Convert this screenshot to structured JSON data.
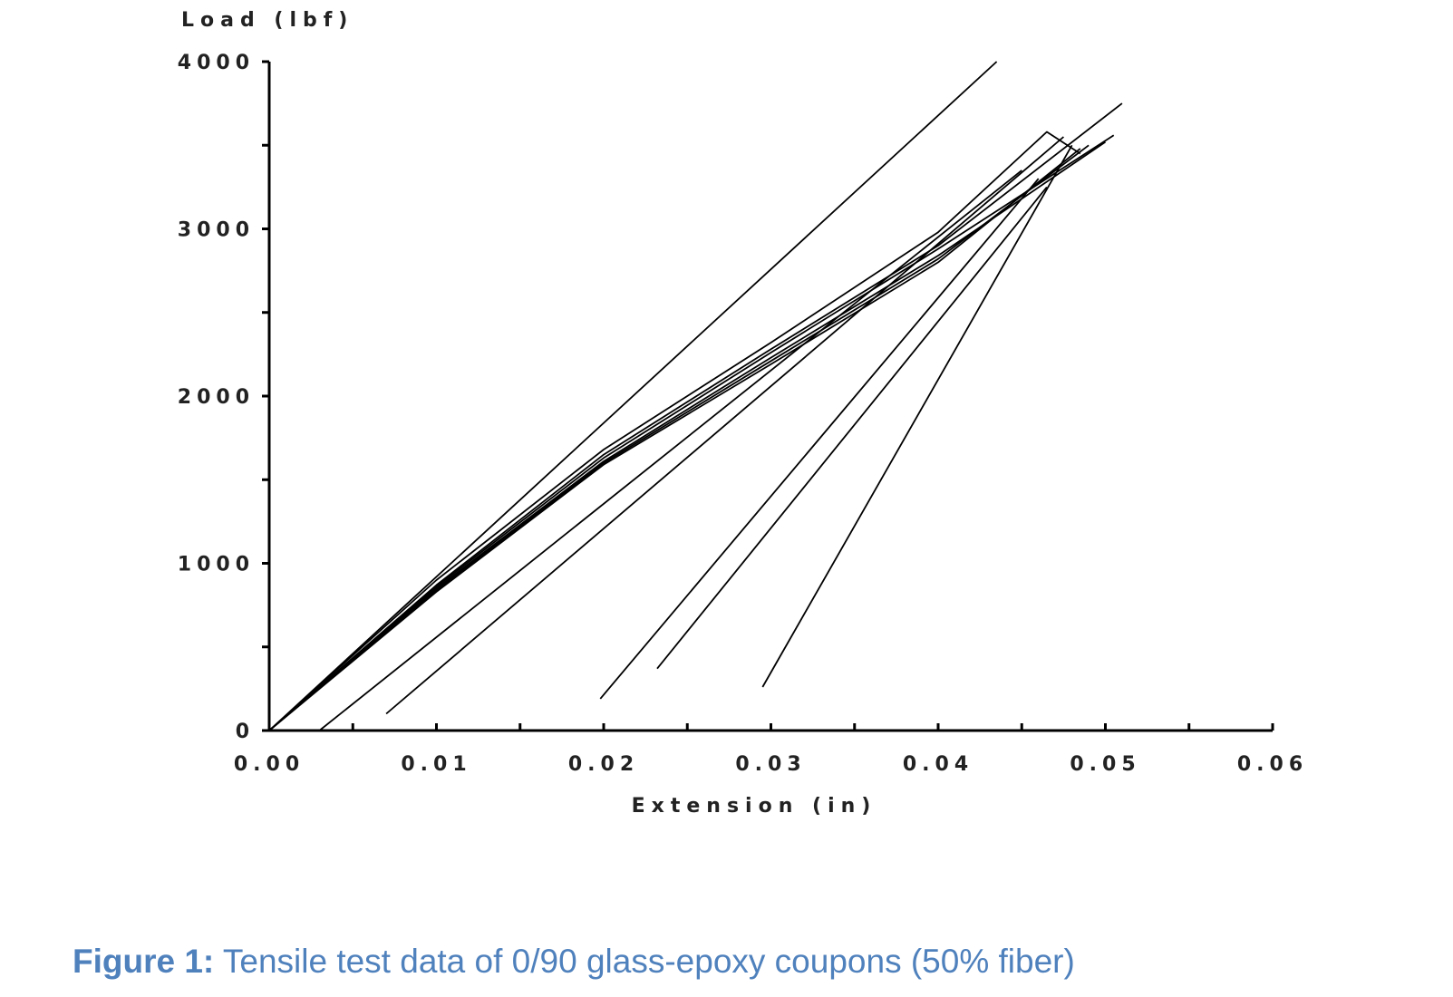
{
  "caption": {
    "label": "Figure 1:",
    "text": "Tensile test data of 0/90 glass-epoxy coupons (50% fiber)",
    "color": "#4f81bd"
  },
  "chart_data": {
    "type": "line",
    "title": "",
    "xlabel": "Extension (in)",
    "ylabel": "Load (lbf)",
    "xlim": [
      0,
      0.06
    ],
    "ylim": [
      0,
      4000
    ],
    "x_ticks": [
      "0.00",
      "0.01",
      "0.02",
      "0.03",
      "0.04",
      "0.05",
      "0.06"
    ],
    "y_ticks": [
      "0",
      "1000",
      "2000",
      "3000",
      "4000"
    ],
    "grid": false,
    "line_color": "#000000",
    "series": [
      {
        "x": [
          0.0,
          0.0435
        ],
        "y": [
          0,
          4000
        ]
      },
      {
        "x": [
          0.0,
          0.01,
          0.02,
          0.03,
          0.04,
          0.0465,
          0.0485
        ],
        "y": [
          0,
          900,
          1680,
          2320,
          2980,
          3580,
          3450
        ]
      },
      {
        "x": [
          0.0,
          0.01,
          0.02,
          0.03,
          0.04,
          0.051
        ],
        "y": [
          0,
          870,
          1650,
          2280,
          2900,
          3750
        ]
      },
      {
        "x": [
          0.0,
          0.01,
          0.02,
          0.03,
          0.04,
          0.0505
        ],
        "y": [
          0,
          860,
          1630,
          2260,
          2880,
          3560
        ]
      },
      {
        "x": [
          0.0,
          0.01,
          0.02,
          0.03,
          0.04,
          0.05
        ],
        "y": [
          0,
          850,
          1610,
          2230,
          2840,
          3520
        ]
      },
      {
        "x": [
          0.0,
          0.01,
          0.02,
          0.03,
          0.04,
          0.049
        ],
        "y": [
          0,
          840,
          1600,
          2210,
          2820,
          3500
        ]
      },
      {
        "x": [
          0.0,
          0.01,
          0.02,
          0.03,
          0.04,
          0.0485
        ],
        "y": [
          0,
          830,
          1590,
          2190,
          2800,
          3480
        ]
      },
      {
        "x": [
          0.003,
          0.045
        ],
        "y": [
          0,
          3350
        ]
      },
      {
        "x": [
          0.007,
          0.0475
        ],
        "y": [
          100,
          3550
        ]
      },
      {
        "x": [
          0.0198,
          0.046
        ],
        "y": [
          190,
          3300
        ]
      },
      {
        "x": [
          0.0232,
          0.0465
        ],
        "y": [
          370,
          3250
        ]
      },
      {
        "x": [
          0.0295,
          0.048
        ],
        "y": [
          260,
          3500
        ]
      }
    ]
  }
}
